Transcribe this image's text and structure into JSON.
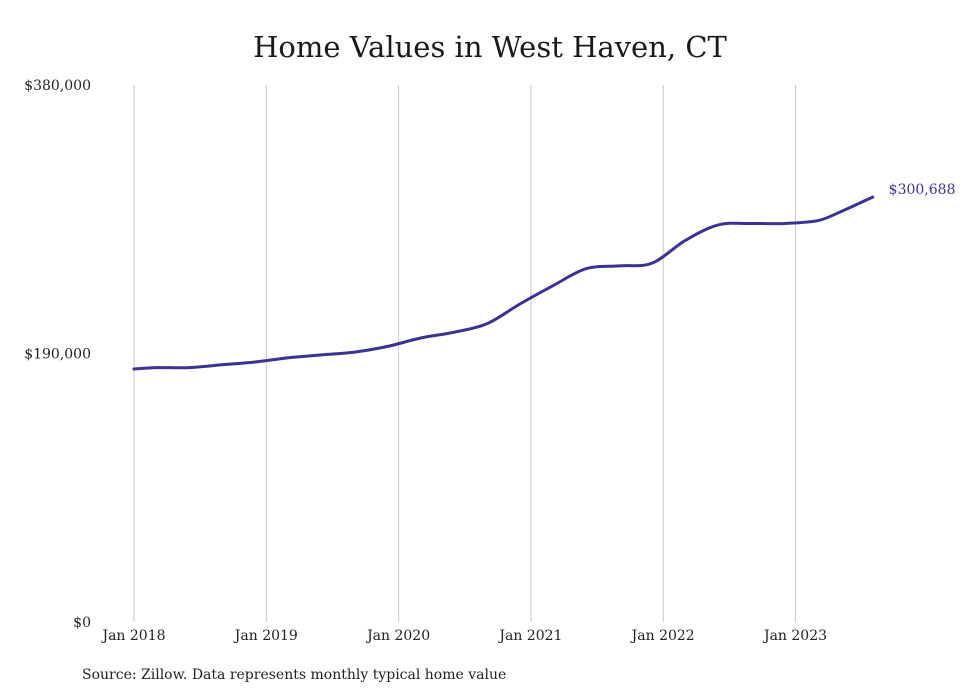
{
  "chart_data": {
    "type": "line",
    "title": "Home Values in West Haven, CT",
    "xlabel": "",
    "ylabel": "",
    "ylim": [
      0,
      380000
    ],
    "ytick_labels": [
      "$0",
      "$190,000",
      "$380,000"
    ],
    "ytick_values": [
      0,
      190000,
      380000
    ],
    "xtick_labels": [
      "Jan 2018",
      "Jan 2019",
      "Jan 2020",
      "Jan 2021",
      "Jan 2022",
      "Jan 2023"
    ],
    "xtick_values": [
      "2018-01",
      "2019-01",
      "2020-01",
      "2021-01",
      "2022-01",
      "2023-01"
    ],
    "grid": "vertical",
    "series": [
      {
        "color": "#3a3392",
        "points": [
          [
            "2018-01",
            179000
          ],
          [
            "2018-03",
            180000
          ],
          [
            "2018-06",
            180000
          ],
          [
            "2018-09",
            182000
          ],
          [
            "2018-12",
            184000
          ],
          [
            "2019-03",
            187000
          ],
          [
            "2019-06",
            189000
          ],
          [
            "2019-09",
            191000
          ],
          [
            "2019-12",
            195000
          ],
          [
            "2020-03",
            201000
          ],
          [
            "2020-06",
            205000
          ],
          [
            "2020-09",
            211000
          ],
          [
            "2020-12",
            225000
          ],
          [
            "2021-03",
            238000
          ],
          [
            "2021-06",
            250000
          ],
          [
            "2021-09",
            252000
          ],
          [
            "2021-12",
            254000
          ],
          [
            "2022-03",
            270000
          ],
          [
            "2022-06",
            281000
          ],
          [
            "2022-09",
            282000
          ],
          [
            "2022-12",
            282000
          ],
          [
            "2023-03",
            284000
          ],
          [
            "2023-05",
            290000
          ],
          [
            "2023-08",
            300688
          ]
        ]
      }
    ],
    "end_label": "$300,688"
  },
  "source_text": "Source: Zillow. Data represents monthly typical home value"
}
